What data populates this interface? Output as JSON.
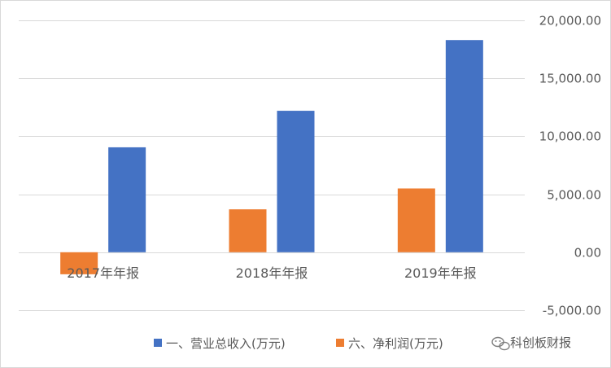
{
  "chart_data": {
    "type": "bar",
    "categories": [
      "2017年年报",
      "2018年年报",
      "2019年年报"
    ],
    "series": [
      {
        "name": "六、净利润(万元)",
        "values": [
          -1900,
          3700,
          5500
        ],
        "color": "#ed7d31"
      },
      {
        "name": "一、营业总收入(万元)",
        "values": [
          9050,
          12200,
          18300
        ],
        "color": "#4472c4"
      }
    ],
    "legend_order": [
      1,
      0
    ],
    "ylim": [
      -5000,
      20000
    ],
    "yticks": [
      "20,000.00",
      "15,000.00",
      "10,000.00",
      "5,000.00",
      "0.00",
      "-5,000.00"
    ],
    "ytick_values": [
      20000,
      15000,
      10000,
      5000,
      0,
      -5000
    ],
    "y_axis_position": "right",
    "grid": true,
    "legend_position": "bottom"
  },
  "watermark": {
    "text": "科创板财报",
    "icon": "wechat-icon"
  }
}
